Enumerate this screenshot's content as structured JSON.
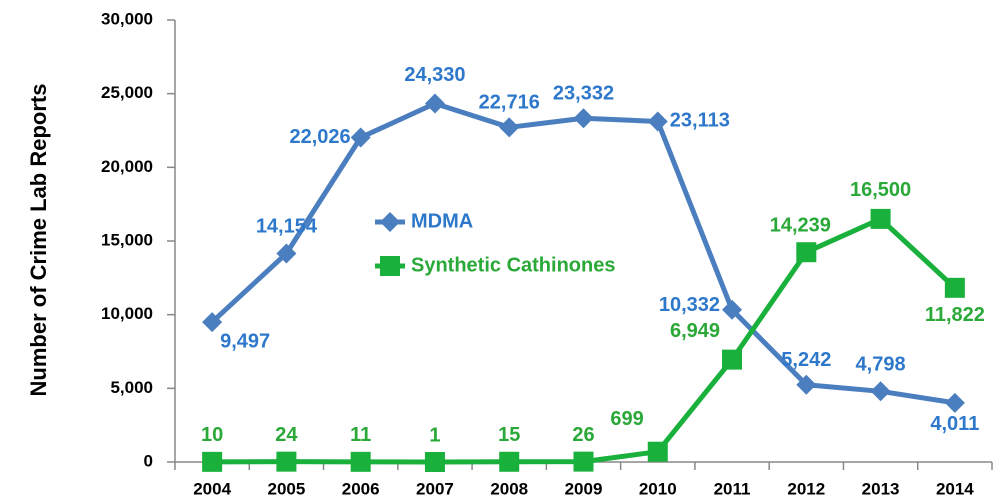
{
  "chart_data": {
    "type": "line",
    "y_label": "Number of Crime Lab Reports",
    "categories": [
      "2004",
      "2005",
      "2006",
      "2007",
      "2008",
      "2009",
      "2010",
      "2011",
      "2012",
      "2013",
      "2014"
    ],
    "series": [
      {
        "name": "MDMA",
        "color": "#4a7ebf",
        "label_color": "#2e78cc",
        "marker": "diamond",
        "values": [
          9497,
          14154,
          22026,
          24330,
          22716,
          23332,
          23113,
          10332,
          5242,
          4798,
          4011
        ],
        "value_labels": [
          "9,497",
          "14,154",
          "22,026",
          "24,330",
          "22,716",
          "23,332",
          "23,113",
          "10,332",
          "5,242",
          "4,798",
          "4,011"
        ]
      },
      {
        "name": "Synthetic Cathinones",
        "color": "#19b03c",
        "label_color": "#2aa838",
        "marker": "square",
        "values": [
          10,
          24,
          11,
          1,
          15,
          26,
          699,
          6949,
          14239,
          16500,
          11822
        ],
        "value_labels": [
          "10",
          "24",
          "11",
          "1",
          "15",
          "26",
          "699",
          "6,949",
          "14,239",
          "16,500",
          "11,822"
        ]
      }
    ],
    "ylim": [
      0,
      30000
    ],
    "yticks": [
      0,
      {
        "value": 5000,
        "label": "5,000"
      },
      {
        "value": 10000,
        "label": "10,000"
      },
      {
        "value": 15000,
        "label": "15,000"
      },
      {
        "value": 20000,
        "label": "20,000"
      },
      {
        "value": 25000,
        "label": "25,000"
      },
      {
        "value": 30000,
        "label": "30,000"
      }
    ],
    "grid": false
  }
}
